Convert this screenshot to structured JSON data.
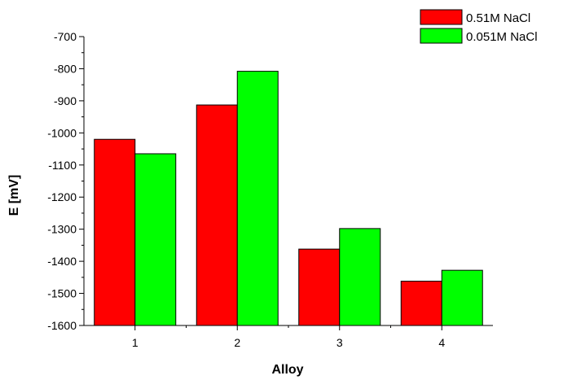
{
  "chart_data": {
    "type": "bar",
    "xlabel": "Alloy",
    "ylabel": "E [mV]",
    "categories": [
      "1",
      "2",
      "3",
      "4"
    ],
    "series": [
      {
        "name": "0.51M NaCl",
        "color": "#ff0000",
        "values": [
          -1020,
          -913,
          -1362,
          -1462
        ]
      },
      {
        "name": "0.051M NaCl",
        "color": "#00ff00",
        "values": [
          -1065,
          -808,
          -1298,
          -1428
        ]
      }
    ],
    "ylim": [
      -1600,
      -700
    ],
    "yticks": [
      -700,
      -800,
      -900,
      -1000,
      -1100,
      -1200,
      -1300,
      -1400,
      -1500,
      -1600
    ],
    "ytick_labels": [
      "-700",
      "-800",
      "-900",
      "-1000",
      "-1100",
      "-1200",
      "-1300",
      "-1400",
      "-1500",
      "-1600"
    ],
    "legend_position": "top-right",
    "grid": false
  }
}
